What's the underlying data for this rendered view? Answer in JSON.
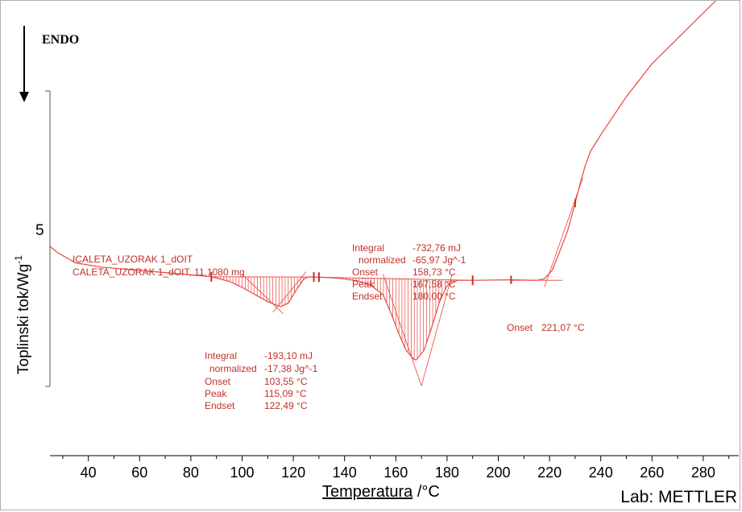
{
  "chart_data": {
    "type": "line",
    "title": "",
    "xlabel": "Temperatura",
    "xlabel_unit": " /°C",
    "ylabel": "Toplinski tok/Wg",
    "ylabel_sup": "-1",
    "y_scale_label": "5",
    "xlim": [
      25,
      300
    ],
    "x_ticks": [
      40,
      60,
      80,
      100,
      120,
      140,
      160,
      180,
      200,
      220,
      240,
      260,
      280
    ],
    "endo_label": "ENDO",
    "line_color": "#e8463c",
    "annotation_color": "#c0302a",
    "series": [
      {
        "x": [
          25,
          28,
          35,
          45,
          60,
          75,
          88,
          95,
          100,
          105,
          110,
          115,
          118,
          121,
          124,
          126,
          128,
          131,
          138,
          145,
          150,
          155,
          158,
          161,
          164,
          167,
          168,
          171,
          174,
          177,
          180,
          184,
          190,
          205,
          215,
          218,
          221,
          224,
          227,
          230,
          232,
          234,
          236,
          240,
          250,
          260,
          270,
          280,
          285,
          290,
          295,
          300
        ],
        "y": [
          5.0,
          4.75,
          4.35,
          4.18,
          4.05,
          3.92,
          3.8,
          3.62,
          3.38,
          3.1,
          2.82,
          2.62,
          2.76,
          3.25,
          3.7,
          3.8,
          3.79,
          3.78,
          3.74,
          3.64,
          3.48,
          3.1,
          2.4,
          1.6,
          0.9,
          0.55,
          0.52,
          0.9,
          1.8,
          2.8,
          3.45,
          3.66,
          3.66,
          3.68,
          3.66,
          3.72,
          4.05,
          4.8,
          5.6,
          6.7,
          7.5,
          8.2,
          8.75,
          9.4,
          10.9,
          12.2,
          13.2,
          14.2,
          14.7,
          14.92,
          15.0,
          15.0
        ]
      }
    ],
    "sample_label_line1": "ICALETA_UZORAK 1_dOIT",
    "sample_label_line2": "CALETA_UZORAK 1_dOIT, 11,1080 mg",
    "peak1": {
      "integral_label": "Integral",
      "integral_value": "-193,10 mJ",
      "normalized_label": "normalized",
      "normalized_value": "-17,38 Jg^-1",
      "onset_label": "Onset",
      "onset_value": "103,55 °C",
      "peak_label": "Peak",
      "peak_value": "115,09 °C",
      "endset_label": "Endset",
      "endset_value": "122,49 °C",
      "x_start": 88,
      "x_end": 128
    },
    "peak2": {
      "integral_label": "Integral",
      "integral_value": "-732,76 mJ",
      "normalized_label": "normalized",
      "normalized_value": "-65,97 Jg^-1",
      "onset_label": "Onset",
      "onset_value": "158,73 °C",
      "peak_label": "Peak",
      "peak_value": "167,58 °C",
      "endset_label": "Endset",
      "endset_value": "180,00 °C",
      "x_start": 130,
      "x_end": 190
    },
    "onset3": {
      "label": "Onset",
      "value": "221,07 °C"
    }
  },
  "footer": {
    "lab_label": "Lab: METTLER"
  }
}
